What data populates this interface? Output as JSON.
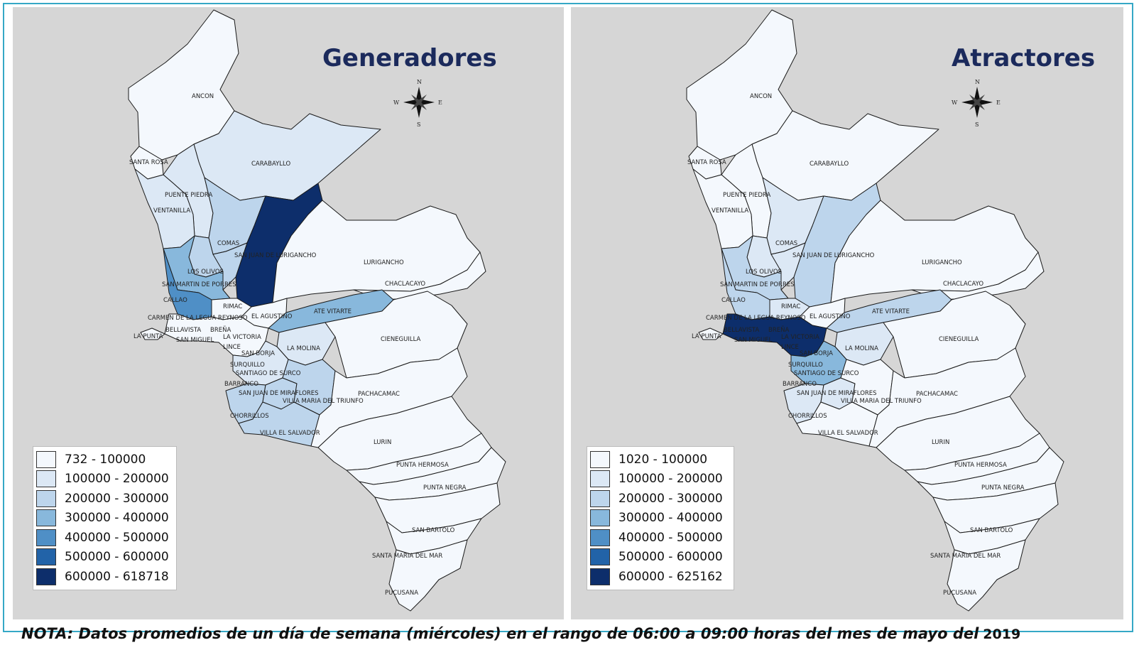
{
  "note": {
    "text": "NOTA: Datos promedios de un día de semana (miércoles) en el rango de 06:00 a 09:00 horas del mes de mayo del",
    "year": "2019"
  },
  "compass": {
    "n": "N",
    "s": "S",
    "e": "E",
    "w": "W"
  },
  "palette": [
    "#f4f8fd",
    "#dce8f5",
    "#bdd5ec",
    "#88b8dc",
    "#4f8fc6",
    "#2263a8",
    "#0d2e6b"
  ],
  "panels": [
    {
      "title": "Generadores",
      "legend": [
        "732 - 100000",
        "100000 - 200000",
        "200000 - 300000",
        "300000 - 400000",
        "400000 - 500000",
        "500000 - 600000",
        "600000 - 618718"
      ],
      "classes": {
        "ancon": 0,
        "santa-rosa": 0,
        "carabayllo": 1,
        "puente-piedra": 1,
        "ventanilla": 1,
        "comas": 2,
        "sjl": 6,
        "los-olivos": 2,
        "smp": 3,
        "callao": 4,
        "independencia": 2,
        "rimac": 0,
        "lurigancho": 0,
        "chaclacayo": 0,
        "ate": 3,
        "cieneguilla": 0,
        "la-molina": 1,
        "el-agustino": 0,
        "central": 0,
        "la-punta": 0,
        "surco": 1,
        "chorrillos": 2,
        "sjm": 2,
        "vmt": 2,
        "ves": 2,
        "pachacamac": 0,
        "lurin": 0,
        "punta-hermosa": 0,
        "punta-negra": 0,
        "san-bartolo": 0,
        "santa-maria": 0,
        "pucusana": 0
      }
    },
    {
      "title": "Atractores",
      "legend": [
        "1020 - 100000",
        "100000 - 200000",
        "200000 - 300000",
        "300000 - 400000",
        "400000 - 500000",
        "500000 - 600000",
        "600000 - 625162"
      ],
      "classes": {
        "ancon": 0,
        "santa-rosa": 0,
        "carabayllo": 0,
        "puente-piedra": 0,
        "ventanilla": 0,
        "comas": 1,
        "sjl": 2,
        "los-olivos": 1,
        "smp": 2,
        "callao": 2,
        "independencia": 1,
        "rimac": 1,
        "lurigancho": 0,
        "chaclacayo": 0,
        "ate": 2,
        "cieneguilla": 0,
        "la-molina": 1,
        "el-agustino": 0,
        "central": 6,
        "la-punta": 0,
        "surco": 3,
        "chorrillos": 1,
        "sjm": 1,
        "vmt": 0,
        "ves": 0,
        "pachacamac": 0,
        "lurin": 0,
        "punta-hermosa": 0,
        "punta-negra": 0,
        "san-bartolo": 0,
        "santa-maria": 0,
        "pucusana": 0
      }
    }
  ],
  "district_labels": [
    "ANCON",
    "CARABAYLLO",
    "SANTA ROSA",
    "PUENTE PIEDRA",
    "VENTANILLA",
    "COMAS",
    "SAN JUAN DE LURIGANCHO",
    "LOS OLIVOS",
    "SAN MARTIN DE PORRES",
    "CALLAO",
    "RIMAC",
    "LURIGANCHO",
    "CHACLACAYO",
    "ATE VITARTE",
    "EL AGUSTINO",
    "CARMEN DE LA LEGUA REYNOSO",
    "BELLAVISTA",
    "BREÑA",
    "LA PUNTA",
    "SAN MIGUEL",
    "LA VICTORIA",
    "LINCE",
    "SAN BORJA",
    "LA MOLINA",
    "CIENEGUILLA",
    "SURQUILLO",
    "SANTIAGO DE SURCO",
    "BARRANCO",
    "SAN JUAN DE MIRAFLORES",
    "VILLA MARIA DEL TRIUNFO",
    "CHORRILLOS",
    "VILLA EL SALVADOR",
    "PACHACAMAC",
    "LURIN",
    "PUNTA HERMOSA",
    "PUNTA NEGRA",
    "SAN BARTOLO",
    "SANTA MARIA DEL MAR",
    "PUCUSANA"
  ]
}
